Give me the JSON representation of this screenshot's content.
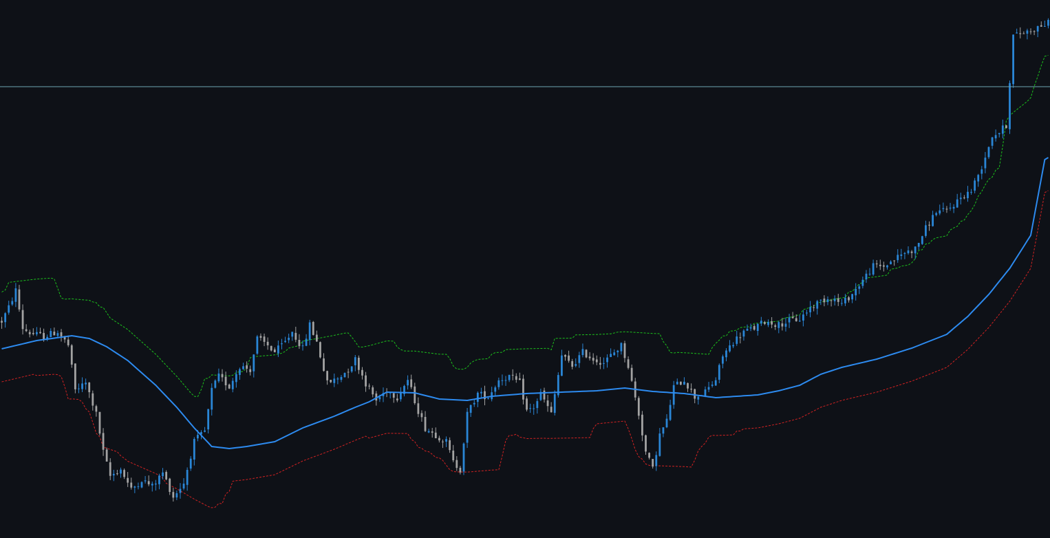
{
  "chart_data": {
    "type": "candlestick",
    "x_count": 300,
    "price_range": [
      0,
      782
    ],
    "horizontal_level": 656,
    "grid": false,
    "legend": "none",
    "colors": {
      "background": "#0e1117",
      "bull": "#2a86d6",
      "bear": "#a3a3a3",
      "ma": "#2d8bf0",
      "upper_band": "#1cc21c",
      "lower_band": "#d32222",
      "level": "#6fa5b0"
    },
    "price_path": [
      [
        0,
        315
      ],
      [
        2,
        335
      ],
      [
        4,
        360
      ],
      [
        6,
        305
      ],
      [
        8,
        298
      ],
      [
        12,
        293
      ],
      [
        16,
        300
      ],
      [
        19,
        280
      ],
      [
        21,
        215
      ],
      [
        24,
        225
      ],
      [
        27,
        180
      ],
      [
        29,
        125
      ],
      [
        31,
        90
      ],
      [
        34,
        100
      ],
      [
        37,
        70
      ],
      [
        40,
        85
      ],
      [
        43,
        75
      ],
      [
        46,
        95
      ],
      [
        49,
        60
      ],
      [
        52,
        80
      ],
      [
        55,
        140
      ],
      [
        58,
        155
      ],
      [
        60,
        215
      ],
      [
        62,
        235
      ],
      [
        65,
        220
      ],
      [
        68,
        250
      ],
      [
        71,
        245
      ],
      [
        73,
        290
      ],
      [
        76,
        280
      ],
      [
        78,
        270
      ],
      [
        81,
        285
      ],
      [
        83,
        300
      ],
      [
        86,
        275
      ],
      [
        88,
        310
      ],
      [
        90,
        285
      ],
      [
        93,
        225
      ],
      [
        96,
        232
      ],
      [
        99,
        245
      ],
      [
        101,
        260
      ],
      [
        104,
        225
      ],
      [
        107,
        200
      ],
      [
        110,
        215
      ],
      [
        113,
        205
      ],
      [
        116,
        230
      ],
      [
        119,
        185
      ],
      [
        121,
        160
      ],
      [
        124,
        150
      ],
      [
        127,
        140
      ],
      [
        129,
        110
      ],
      [
        131,
        100
      ],
      [
        133,
        180
      ],
      [
        136,
        210
      ],
      [
        139,
        205
      ],
      [
        142,
        230
      ],
      [
        145,
        235
      ],
      [
        148,
        225
      ],
      [
        150,
        185
      ],
      [
        152,
        190
      ],
      [
        154,
        210
      ],
      [
        157,
        180
      ],
      [
        160,
        265
      ],
      [
        163,
        250
      ],
      [
        166,
        270
      ],
      [
        169,
        260
      ],
      [
        172,
        255
      ],
      [
        175,
        270
      ],
      [
        177,
        280
      ],
      [
        179,
        250
      ],
      [
        182,
        180
      ],
      [
        184,
        125
      ],
      [
        186,
        100
      ],
      [
        188,
        150
      ],
      [
        190,
        170
      ],
      [
        192,
        220
      ],
      [
        195,
        230
      ],
      [
        198,
        205
      ],
      [
        201,
        212
      ],
      [
        204,
        230
      ],
      [
        206,
        265
      ],
      [
        209,
        285
      ],
      [
        212,
        300
      ],
      [
        215,
        305
      ],
      [
        218,
        315
      ],
      [
        222,
        310
      ],
      [
        225,
        316
      ],
      [
        228,
        318
      ],
      [
        231,
        335
      ],
      [
        234,
        345
      ],
      [
        237,
        350
      ],
      [
        240,
        340
      ],
      [
        243,
        355
      ],
      [
        246,
        375
      ],
      [
        249,
        395
      ],
      [
        252,
        395
      ],
      [
        255,
        405
      ],
      [
        258,
        415
      ],
      [
        261,
        420
      ],
      [
        264,
        450
      ],
      [
        267,
        475
      ],
      [
        270,
        475
      ],
      [
        274,
        495
      ],
      [
        277,
        505
      ],
      [
        280,
        540
      ],
      [
        283,
        585
      ],
      [
        285,
        590
      ],
      [
        287,
        600
      ],
      [
        289,
        730
      ],
      [
        292,
        735
      ],
      [
        295,
        740
      ],
      [
        297,
        745
      ],
      [
        300,
        750
      ]
    ],
    "ma_path": [
      [
        0,
        275
      ],
      [
        10,
        287
      ],
      [
        20,
        294
      ],
      [
        25,
        290
      ],
      [
        30,
        278
      ],
      [
        36,
        258
      ],
      [
        44,
        222
      ],
      [
        50,
        190
      ],
      [
        55,
        160
      ],
      [
        60,
        133
      ],
      [
        65,
        130
      ],
      [
        70,
        133
      ],
      [
        78,
        140
      ],
      [
        86,
        160
      ],
      [
        95,
        177
      ],
      [
        101,
        190
      ],
      [
        105,
        198
      ],
      [
        110,
        212
      ],
      [
        118,
        211
      ],
      [
        125,
        202
      ],
      [
        133,
        200
      ],
      [
        140,
        206
      ],
      [
        150,
        210
      ],
      [
        160,
        212
      ],
      [
        170,
        214
      ],
      [
        178,
        218
      ],
      [
        186,
        213
      ],
      [
        195,
        210
      ],
      [
        204,
        204
      ],
      [
        210,
        206
      ],
      [
        216,
        208
      ],
      [
        222,
        214
      ],
      [
        228,
        222
      ],
      [
        234,
        238
      ],
      [
        240,
        248
      ],
      [
        250,
        260
      ],
      [
        260,
        276
      ],
      [
        270,
        296
      ],
      [
        276,
        322
      ],
      [
        282,
        354
      ],
      [
        288,
        392
      ],
      [
        294,
        440
      ],
      [
        298,
        550
      ],
      [
        300,
        556
      ]
    ],
    "band_offset_upper": 75,
    "band_offset_lower": 80
  }
}
